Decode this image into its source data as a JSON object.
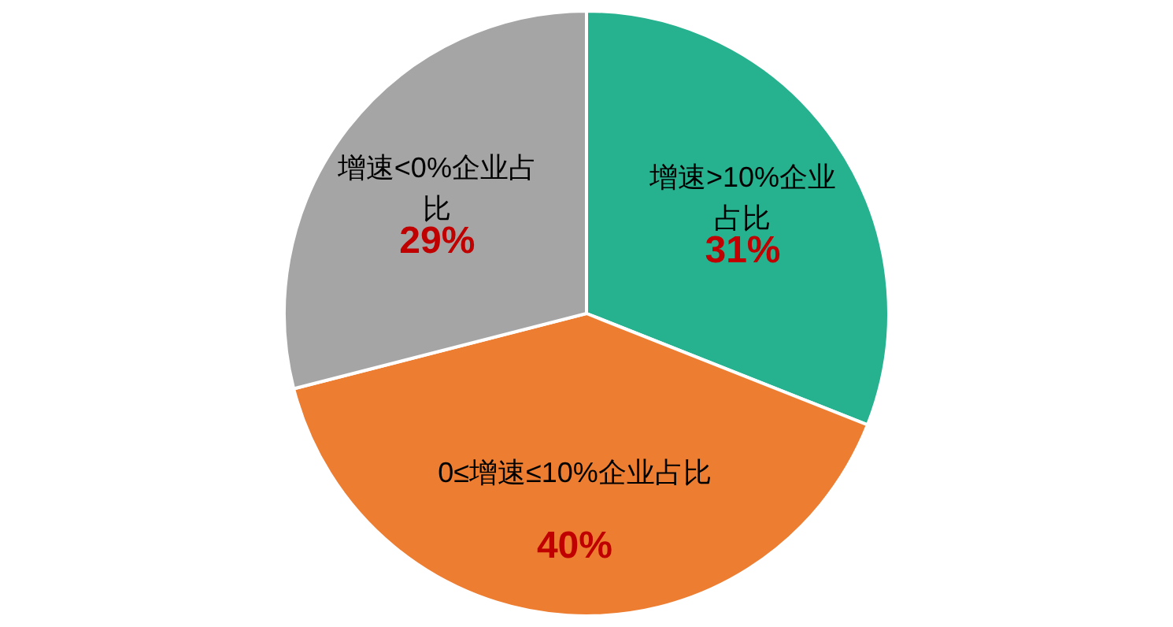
{
  "chart_data": {
    "type": "pie",
    "categories": [
      "增速>10%企业占比",
      "0≤增速≤10%企业占比",
      "增速<0%企业占比"
    ],
    "values": [
      31,
      40,
      29
    ],
    "colors": [
      "#26b28f",
      "#ed7d31",
      "#a5a5a5"
    ],
    "value_labels": [
      "31%",
      "40%",
      "29%"
    ]
  }
}
